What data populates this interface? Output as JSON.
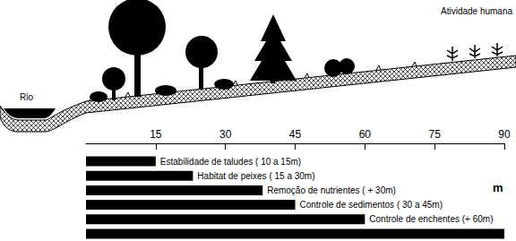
{
  "chart_data": {
    "type": "bar",
    "orientation": "horizontal",
    "categories": [
      "Estabilidade de taludes ( 10 a 15m)",
      "Habitat de peixes ( 15 a 30m)",
      "Remoção de nutrientes ( + 30m)",
      "Controle de sedimentos ( 30 a 45m)",
      "Controle de enchentes (+ 60m)",
      null
    ],
    "values": [
      15,
      23,
      38,
      45,
      60,
      90
    ],
    "color": "#000000",
    "xlim": [
      0,
      90
    ],
    "xticks": [
      15,
      30,
      45,
      60,
      75,
      90
    ],
    "xlabel": "m",
    "annotations": [
      "Rio",
      "Atividade humana"
    ],
    "grid": false,
    "tick_labels": "x"
  }
}
